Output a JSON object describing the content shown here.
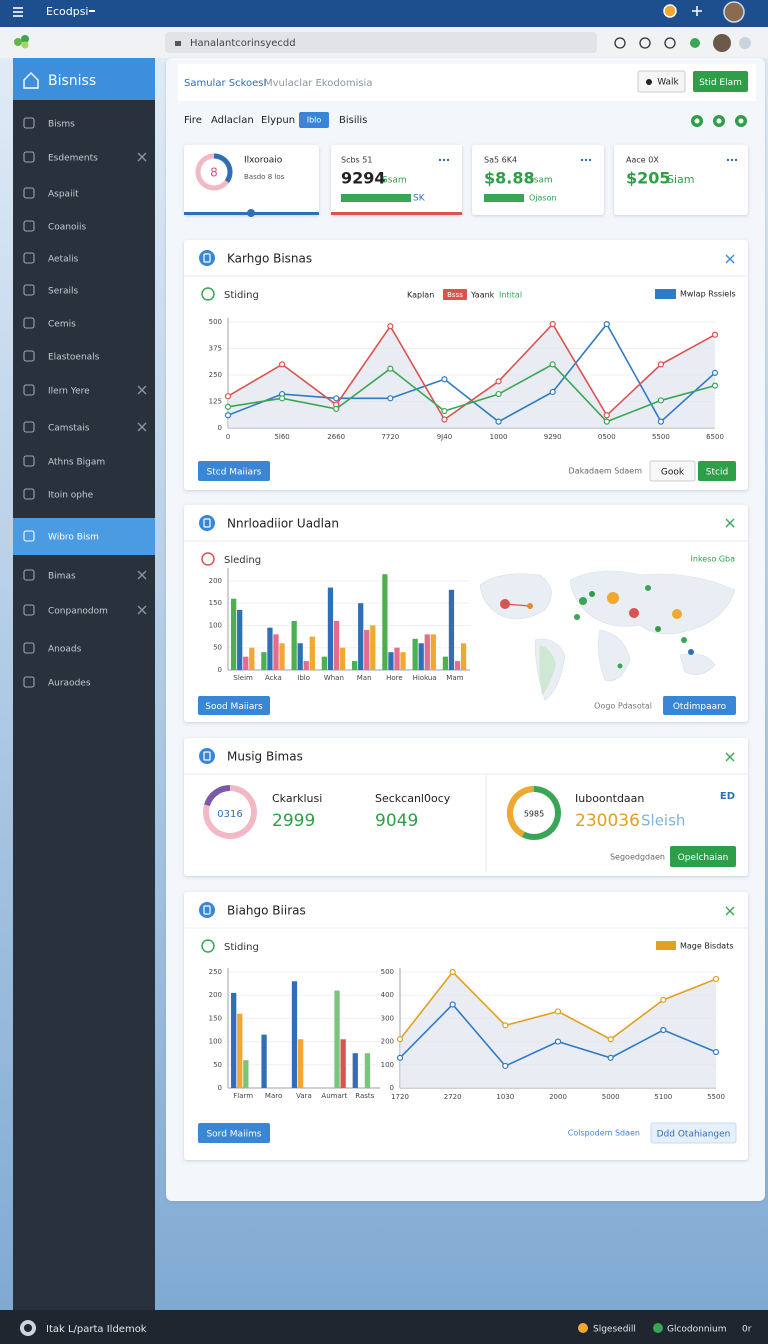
{
  "topbar": {
    "app": "Ecodpsi",
    "address": "Hanalantcorinsyecdd"
  },
  "sidebar": {
    "title": "Bisniss",
    "items": [
      "Bisms",
      "Esdements",
      "Aspaiit",
      "Coanoiis",
      "Aetalis",
      "Serails",
      "Cemis",
      "Elastoenals",
      "Ilern Yere",
      "Camstais",
      "Athns Bigam",
      "Itoin ophe",
      "Wibro Bism",
      "Bimas",
      "Conpanodom",
      "Anoads",
      "Auraodes"
    ],
    "active": 12
  },
  "header": {
    "title": "Samular Sckoesl",
    "subtitle": "Mvulaclar Ekodomisia",
    "buttons": [
      "Walk",
      "Stid Elam"
    ]
  },
  "tabs": {
    "items": [
      "Fire",
      "Adlaclan",
      "Elypun",
      "Iblo",
      "Bisilis"
    ],
    "active": 3
  },
  "kpis": [
    {
      "label": "Ilxoroaio",
      "value": "8",
      "note": "Basdo 8 los"
    },
    {
      "label": "Scbs 51",
      "value": "9294",
      "note": "Ssam",
      "extra": "SK"
    },
    {
      "label": "Sa5 6K4",
      "value": "$8.88",
      "note": "Ssam",
      "extra": "Ojason"
    },
    {
      "label": "Aace 0X",
      "value": "$205",
      "note": "Siam"
    }
  ],
  "panels": [
    {
      "title": "Karhgo Bisnas",
      "subtitle": "Stiding",
      "legend_note": "Yaank",
      "legend_title": "Mwlap Rssiels",
      "buttons": [
        "Stcd Maiiars",
        "Dakadaem Sdaem",
        "Gook",
        "Stcid"
      ]
    },
    {
      "title": "Nnrloadiior Uadlan",
      "subtitle": "Sleding",
      "map_label": "Inkeso Gba",
      "buttons": [
        "Sood Maiiars",
        "Oogo Pdasotal",
        "Otdimpaaro"
      ]
    },
    {
      "title": "Musig Bimas",
      "stats": [
        {
          "donut": "0316",
          "label": "Ckarklusi",
          "value": "2999"
        },
        {
          "label": "Seckcanl0ocy",
          "value": "9049"
        },
        {
          "donut": "5985",
          "label": "Iuboontdaan",
          "value": "230036",
          "unit": "Sleish"
        }
      ],
      "badge": "ED",
      "note": "Segoedgdaen",
      "button": "Opelchaian"
    },
    {
      "title": "Biahgo Biiras",
      "subtitle": "Stiding",
      "legend_title": "Mage Bisdats",
      "buttons": [
        "Sord Maiims",
        "Colspodem Sdaen",
        "Ddd Otahiangen"
      ]
    }
  ],
  "footer": {
    "left": "Itak L/parta Ildemok",
    "right": [
      "Slgesedill",
      "Glcodonnium",
      "0r"
    ]
  },
  "chart_data": [
    {
      "type": "line",
      "categories": [
        "0",
        "5l60",
        "2660",
        "7720",
        "9J40",
        "1000",
        "9290",
        "0500",
        "5500",
        "6500"
      ],
      "series": [
        {
          "name": "Kaplan",
          "color": "#2f7bc4",
          "values": [
            60,
            160,
            140,
            140,
            230,
            30,
            170,
            490,
            30,
            260
          ]
        },
        {
          "name": "Bsss",
          "color": "#d9534f",
          "values": [
            150,
            300,
            110,
            480,
            40,
            220,
            490,
            60,
            300,
            440
          ]
        },
        {
          "name": "Intital",
          "color": "#3aa655",
          "values": [
            100,
            140,
            90,
            280,
            80,
            160,
            300,
            30,
            130,
            200
          ]
        }
      ],
      "ylim": [
        0,
        500
      ],
      "yticks": [
        0,
        125,
        250,
        375,
        500
      ]
    },
    {
      "type": "bar",
      "categories": [
        "Sleim",
        "Acka",
        "Iblo",
        "Whan",
        "Man",
        "Hore",
        "Hiokua",
        "Mam"
      ],
      "series": [
        {
          "color": "#4caf50",
          "values": [
            160,
            40,
            110,
            30,
            20,
            215,
            70,
            30
          ]
        },
        {
          "color": "#2f6fb5",
          "values": [
            135,
            95,
            60,
            185,
            150,
            40,
            60,
            180
          ]
        },
        {
          "color": "#e56b8f",
          "values": [
            30,
            80,
            20,
            110,
            90,
            50,
            80,
            20
          ]
        },
        {
          "color": "#f0a830",
          "values": [
            50,
            60,
            75,
            50,
            100,
            40,
            80,
            60
          ]
        }
      ],
      "ylim": [
        0,
        220
      ],
      "yticks": [
        0,
        50,
        100,
        150,
        200
      ]
    },
    {
      "type": "bar",
      "categories": [
        "Flarm",
        "Maro",
        "Vara",
        "Aumart",
        "Rasts"
      ],
      "series": [
        {
          "color": "#2f6fb5",
          "values": [
            205,
            115,
            230,
            0,
            75
          ]
        },
        {
          "color": "#f0a830",
          "values": [
            160,
            0,
            105,
            0,
            0
          ]
        },
        {
          "color": "#7cc47c",
          "values": [
            60,
            0,
            0,
            210,
            75
          ]
        },
        {
          "color": "#d9534f",
          "values": [
            0,
            0,
            0,
            105,
            0
          ]
        }
      ],
      "ylim": [
        0,
        250
      ],
      "yticks": [
        0,
        50,
        100,
        150,
        200,
        250
      ]
    },
    {
      "type": "line",
      "categories": [
        "1720",
        "2720",
        "1030",
        "2000",
        "5000",
        "5100",
        "5500"
      ],
      "series": [
        {
          "color": "#e0a020",
          "values": [
            210,
            500,
            270,
            330,
            210,
            380,
            470
          ]
        },
        {
          "color": "#2f7bc4",
          "values": [
            130,
            360,
            95,
            200,
            130,
            250,
            155
          ]
        }
      ],
      "ylim": [
        0,
        500
      ],
      "yticks": [
        0,
        100,
        200,
        300,
        400,
        500
      ]
    }
  ]
}
